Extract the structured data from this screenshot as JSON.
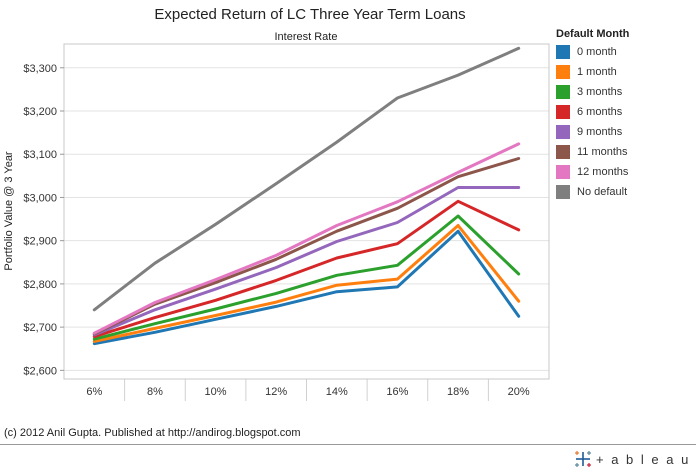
{
  "chart_data": {
    "type": "line",
    "title": "Expected Return of LC Three Year Term Loans",
    "xlabel": "Interest Rate",
    "ylabel": "Portfolio Value @ 3 Year",
    "categories": [
      "6%",
      "8%",
      "10%",
      "12%",
      "14%",
      "16%",
      "18%",
      "20%"
    ],
    "y_ticks": [
      2600,
      2700,
      2800,
      2900,
      3000,
      3100,
      3200,
      3300
    ],
    "y_tick_labels": [
      "$2,600",
      "$2,700",
      "$2,800",
      "$2,900",
      "$3,000",
      "$3,100",
      "$3,200",
      "$3,300"
    ],
    "ylim": [
      2580,
      3355
    ],
    "grid": "horizontal",
    "legend_title": "Default Month",
    "legend_position": "right",
    "series": [
      {
        "name": "0 month",
        "color": "#1f77b4",
        "values": [
          2662,
          2688,
          2718,
          2748,
          2782,
          2793,
          2922,
          2725
        ]
      },
      {
        "name": "1 month",
        "color": "#ff7f0e",
        "values": [
          2667,
          2697,
          2727,
          2758,
          2797,
          2811,
          2935,
          2760
        ]
      },
      {
        "name": "3 months",
        "color": "#2ca02c",
        "values": [
          2672,
          2708,
          2742,
          2778,
          2820,
          2843,
          2957,
          2823
        ]
      },
      {
        "name": "6 months",
        "color": "#d62728",
        "values": [
          2678,
          2722,
          2762,
          2808,
          2860,
          2893,
          2991,
          2925
        ]
      },
      {
        "name": "9 months",
        "color": "#9467bd",
        "values": [
          2682,
          2740,
          2788,
          2838,
          2898,
          2942,
          3023,
          3023
        ]
      },
      {
        "name": "11 months",
        "color": "#8c564b",
        "values": [
          2684,
          2753,
          2803,
          2857,
          2922,
          2975,
          3048,
          3090
        ]
      },
      {
        "name": "12 months",
        "color": "#e377c2",
        "values": [
          2686,
          2757,
          2810,
          2866,
          2935,
          2990,
          3058,
          3124
        ]
      },
      {
        "name": "No default",
        "color": "#7f7f7f",
        "values": [
          2740,
          2848,
          2938,
          3032,
          3128,
          3230,
          3283,
          3345
        ]
      }
    ]
  },
  "footer": {
    "credit": "(c) 2012 Anil Gupta. Published at http://andirog.blogspot.com",
    "brand": "+ a b l e a u"
  }
}
